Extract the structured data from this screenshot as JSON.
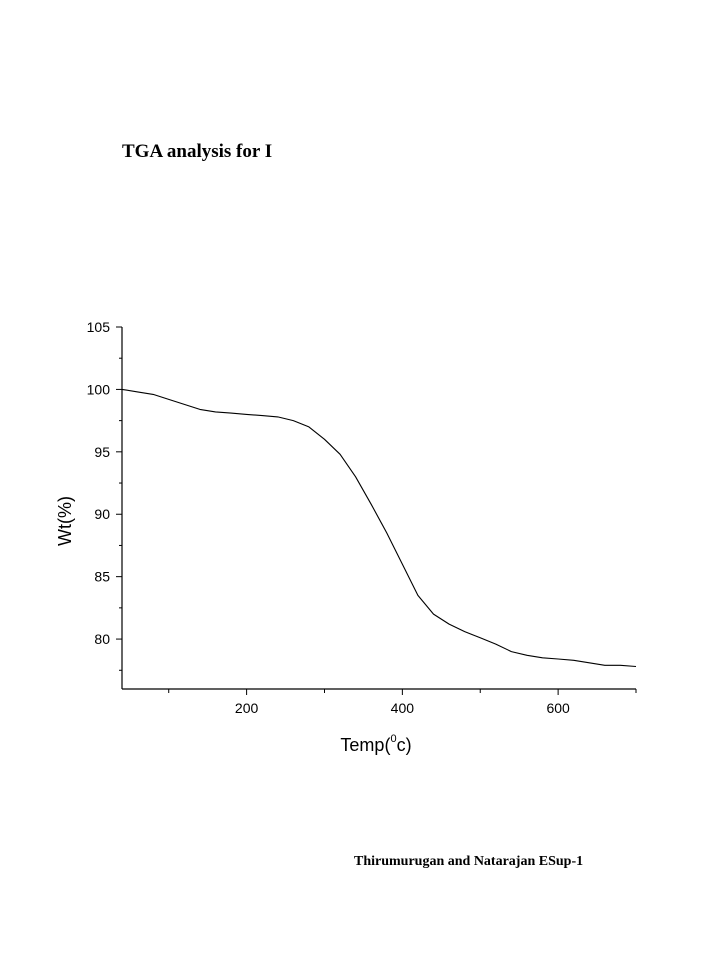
{
  "page": {
    "title": "TGA analysis for I",
    "footer": "Thirumurugan and Natarajan ESup-1"
  },
  "chart_data": {
    "type": "line",
    "xlabel": "Temp(",
    "xlabel_sup": "0",
    "xlabel_end": "c)",
    "ylabel": "Wt(%)",
    "xlim": [
      40,
      700
    ],
    "ylim": [
      76,
      105
    ],
    "xticks": [
      200,
      400,
      600
    ],
    "xticks_minor": [
      100,
      300,
      500,
      700
    ],
    "yticks": [
      80,
      85,
      90,
      95,
      100,
      105
    ],
    "yticks_minor": [
      77.5,
      82.5,
      87.5,
      92.5,
      97.5,
      102.5
    ],
    "xtick_labels": [
      "200",
      "400",
      "600"
    ],
    "ytick_labels": [
      "80",
      "85",
      "90",
      "95",
      "100",
      "105"
    ],
    "grid": false,
    "line_color": "#000000",
    "series": [
      {
        "x": [
          40,
          60,
          80,
          100,
          120,
          140,
          160,
          180,
          200,
          220,
          240,
          260,
          280,
          300,
          320,
          340,
          360,
          380,
          400,
          420,
          440,
          460,
          480,
          500,
          520,
          540,
          560,
          580,
          600,
          620,
          640,
          660,
          680,
          700
        ],
        "y": [
          100.0,
          99.8,
          99.6,
          99.2,
          98.8,
          98.4,
          98.2,
          98.1,
          98.0,
          97.9,
          97.8,
          97.5,
          97.0,
          96.0,
          94.8,
          93.0,
          90.8,
          88.5,
          86.0,
          83.5,
          82.0,
          81.2,
          80.6,
          80.1,
          79.6,
          79.0,
          78.7,
          78.5,
          78.4,
          78.3,
          78.1,
          77.9,
          77.9,
          77.8
        ]
      }
    ]
  }
}
